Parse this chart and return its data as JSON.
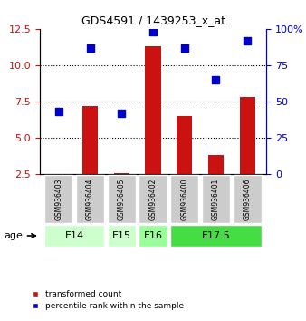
{
  "title": "GDS4591 / 1439253_x_at",
  "samples": [
    "GSM936403",
    "GSM936404",
    "GSM936405",
    "GSM936402",
    "GSM936400",
    "GSM936401",
    "GSM936406"
  ],
  "transformed_count": [
    2.55,
    7.2,
    2.6,
    11.3,
    6.5,
    3.8,
    7.8
  ],
  "percentile_rank": [
    43,
    87,
    42,
    98,
    87,
    65,
    92
  ],
  "ylim_left": [
    2.5,
    12.5
  ],
  "ylim_right": [
    0,
    100
  ],
  "yticks_left": [
    2.5,
    5.0,
    7.5,
    10.0,
    12.5
  ],
  "yticks_right": [
    0,
    25,
    50,
    75,
    100
  ],
  "age_groups": [
    {
      "label": "E14",
      "samples": [
        "GSM936403",
        "GSM936404"
      ],
      "color": "#ccffcc"
    },
    {
      "label": "E15",
      "samples": [
        "GSM936405"
      ],
      "color": "#ccffcc"
    },
    {
      "label": "E16",
      "samples": [
        "GSM936402"
      ],
      "color": "#99ff99"
    },
    {
      "label": "E17.5",
      "samples": [
        "GSM936400",
        "GSM936401",
        "GSM936406"
      ],
      "color": "#44dd44"
    }
  ],
  "bar_color": "#cc1111",
  "scatter_color": "#0000cc",
  "bar_width": 0.5,
  "grid_color": "black",
  "sample_box_color": "#cccccc",
  "legend_bar_label": "transformed count",
  "legend_scatter_label": "percentile rank within the sample",
  "left_axis_color": "#cc1111",
  "right_axis_color": "#0000cc"
}
